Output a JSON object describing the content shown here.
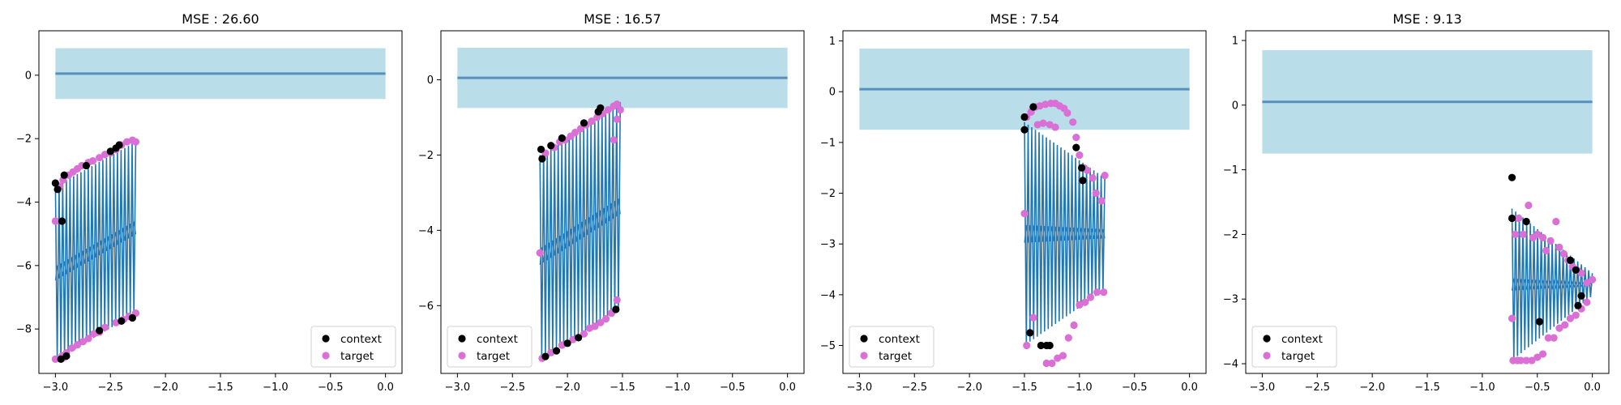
{
  "chart_data": [
    {
      "type": "line",
      "title": "MSE : 26.60",
      "xlim": [
        -3.15,
        0.15
      ],
      "ylim": [
        -9.4,
        1.4
      ],
      "xticks": [
        -3.0,
        -2.5,
        -2.0,
        -1.5,
        -1.0,
        -0.5,
        0.0
      ],
      "yticks": [
        -8,
        -6,
        -4,
        -2,
        0
      ],
      "xtick_labels": [
        "−3.0",
        "−2.5",
        "−2.0",
        "−1.5",
        "−1.0",
        "−0.5",
        "0.0"
      ],
      "ytick_labels": [
        "−8",
        "−6",
        "−4",
        "−2",
        "0"
      ],
      "grid": false,
      "legend_position": "lower right",
      "legend": [
        "context",
        "target"
      ],
      "prediction": {
        "x_range": [
          -3.0,
          0.0
        ],
        "mean": 0.05,
        "band": [
          -0.75,
          0.85
        ]
      },
      "signal": {
        "x_range": [
          -3.0,
          -2.27
        ],
        "upper_start": -3.5,
        "upper_end": -2.1,
        "lower_start": -9.0,
        "lower_end": -7.5,
        "oscillations": 22
      },
      "context_points": [
        [
          -3.0,
          -3.4
        ],
        [
          -2.98,
          -3.6
        ],
        [
          -2.92,
          -3.15
        ],
        [
          -2.72,
          -2.85
        ],
        [
          -2.5,
          -2.4
        ],
        [
          -2.45,
          -2.3
        ],
        [
          -2.42,
          -2.2
        ],
        [
          -2.4,
          -7.75
        ],
        [
          -2.3,
          -7.65
        ],
        [
          -2.6,
          -8.05
        ],
        [
          -2.9,
          -8.85
        ],
        [
          -2.95,
          -8.95
        ],
        [
          -2.94,
          -4.6
        ]
      ],
      "target_points": [
        [
          -3.0,
          -4.6
        ],
        [
          -3.0,
          -8.95
        ],
        [
          -2.96,
          -3.5
        ],
        [
          -2.93,
          -3.3
        ],
        [
          -2.88,
          -3.15
        ],
        [
          -2.84,
          -3.05
        ],
        [
          -2.8,
          -2.95
        ],
        [
          -2.76,
          -2.85
        ],
        [
          -2.7,
          -2.75
        ],
        [
          -2.66,
          -2.7
        ],
        [
          -2.6,
          -2.6
        ],
        [
          -2.55,
          -2.5
        ],
        [
          -2.5,
          -2.45
        ],
        [
          -2.45,
          -2.35
        ],
        [
          -2.4,
          -2.2
        ],
        [
          -2.35,
          -2.1
        ],
        [
          -2.3,
          -2.05
        ],
        [
          -2.27,
          -2.1
        ],
        [
          -2.27,
          -7.5
        ],
        [
          -2.33,
          -7.6
        ],
        [
          -2.38,
          -7.7
        ],
        [
          -2.45,
          -7.8
        ],
        [
          -2.55,
          -7.95
        ],
        [
          -2.6,
          -8.1
        ],
        [
          -2.65,
          -8.15
        ],
        [
          -2.7,
          -8.3
        ],
        [
          -2.75,
          -8.4
        ],
        [
          -2.8,
          -8.5
        ],
        [
          -2.85,
          -8.6
        ],
        [
          -2.9,
          -8.75
        ],
        [
          -2.94,
          -8.85
        ],
        [
          -2.92,
          -8.9
        ]
      ]
    },
    {
      "type": "line",
      "title": "MSE : 16.57",
      "xlim": [
        -3.15,
        0.15
      ],
      "ylim": [
        -7.8,
        1.3
      ],
      "xticks": [
        -3.0,
        -2.5,
        -2.0,
        -1.5,
        -1.0,
        -0.5,
        0.0
      ],
      "yticks": [
        -6,
        -4,
        -2,
        0
      ],
      "xtick_labels": [
        "−3.0",
        "−2.5",
        "−2.0",
        "−1.5",
        "−1.0",
        "−0.5",
        "0.0"
      ],
      "ytick_labels": [
        "−6",
        "−4",
        "−2",
        "0"
      ],
      "grid": false,
      "legend_position": "lower left",
      "legend": [
        "context",
        "target"
      ],
      "prediction": {
        "x_range": [
          -3.0,
          0.0
        ],
        "mean": 0.05,
        "band": [
          -0.75,
          0.85
        ]
      },
      "signal": {
        "x_range": [
          -2.25,
          -1.52
        ],
        "upper_start": -2.0,
        "upper_end": -0.6,
        "lower_start": -7.4,
        "lower_end": -6.1,
        "oscillations": 22
      },
      "context_points": [
        [
          -2.24,
          -1.85
        ],
        [
          -2.23,
          -2.1
        ],
        [
          -2.15,
          -1.75
        ],
        [
          -2.05,
          -1.55
        ],
        [
          -1.85,
          -1.15
        ],
        [
          -1.72,
          -0.85
        ],
        [
          -1.7,
          -0.75
        ],
        [
          -1.56,
          -6.1
        ],
        [
          -1.9,
          -6.85
        ],
        [
          -2.0,
          -7.0
        ],
        [
          -2.1,
          -7.2
        ],
        [
          -2.2,
          -7.35
        ]
      ],
      "target_points": [
        [
          -2.25,
          -4.6
        ],
        [
          -2.23,
          -7.4
        ],
        [
          -2.2,
          -1.95
        ],
        [
          -2.12,
          -1.8
        ],
        [
          -2.07,
          -1.65
        ],
        [
          -2.02,
          -1.6
        ],
        [
          -1.97,
          -1.5
        ],
        [
          -1.93,
          -1.4
        ],
        [
          -1.88,
          -1.3
        ],
        [
          -1.83,
          -1.2
        ],
        [
          -1.78,
          -1.1
        ],
        [
          -1.73,
          -1.0
        ],
        [
          -1.68,
          -0.9
        ],
        [
          -1.63,
          -0.8
        ],
        [
          -1.58,
          -0.7
        ],
        [
          -1.55,
          -0.65
        ],
        [
          -1.52,
          -0.8
        ],
        [
          -1.55,
          -1.05
        ],
        [
          -1.58,
          -1.6
        ],
        [
          -1.55,
          -5.85
        ],
        [
          -1.6,
          -6.2
        ],
        [
          -1.65,
          -6.35
        ],
        [
          -1.7,
          -6.45
        ],
        [
          -1.75,
          -6.55
        ],
        [
          -1.8,
          -6.6
        ],
        [
          -1.85,
          -6.75
        ],
        [
          -1.95,
          -6.9
        ],
        [
          -2.05,
          -7.05
        ],
        [
          -2.15,
          -7.25
        ]
      ]
    },
    {
      "type": "line",
      "title": "MSE : 7.54",
      "xlim": [
        -3.15,
        0.15
      ],
      "ylim": [
        -5.55,
        1.2
      ],
      "xticks": [
        -3.0,
        -2.5,
        -2.0,
        -1.5,
        -1.0,
        -0.5,
        0.0
      ],
      "yticks": [
        -5,
        -4,
        -3,
        -2,
        -1,
        0,
        1
      ],
      "xtick_labels": [
        "−3.0",
        "−2.5",
        "−2.0",
        "−1.5",
        "−1.0",
        "−0.5",
        "0.0"
      ],
      "ytick_labels": [
        "−5",
        "−4",
        "−3",
        "−2",
        "−1",
        "0",
        "1"
      ],
      "grid": false,
      "legend_position": "lower left",
      "legend": [
        "context",
        "target"
      ],
      "prediction": {
        "x_range": [
          -3.0,
          0.0
        ],
        "mean": 0.05,
        "band": [
          -0.75,
          0.85
        ]
      },
      "signal": {
        "x_range": [
          -1.5,
          -0.77
        ],
        "upper_start": -0.6,
        "upper_end": -1.7,
        "lower_start": -5.0,
        "lower_end": -3.9,
        "oscillations": 22
      },
      "context_points": [
        [
          -1.5,
          -0.5
        ],
        [
          -1.5,
          -0.75
        ],
        [
          -1.42,
          -0.3
        ],
        [
          -1.35,
          -5.0
        ],
        [
          -1.3,
          -5.0
        ],
        [
          -1.27,
          -5.0
        ],
        [
          -1.03,
          -1.1
        ],
        [
          -0.98,
          -1.5
        ],
        [
          -0.97,
          -1.75
        ],
        [
          -1.45,
          -4.75
        ]
      ],
      "target_points": [
        [
          -1.5,
          -2.4
        ],
        [
          -1.48,
          -5.0
        ],
        [
          -1.48,
          -0.5
        ],
        [
          -1.44,
          -0.4
        ],
        [
          -1.4,
          -0.3
        ],
        [
          -1.36,
          -0.28
        ],
        [
          -1.31,
          -0.25
        ],
        [
          -1.26,
          -0.23
        ],
        [
          -1.22,
          -0.23
        ],
        [
          -1.18,
          -0.28
        ],
        [
          -1.14,
          -0.33
        ],
        [
          -1.11,
          -0.42
        ],
        [
          -1.06,
          -0.6
        ],
        [
          -1.03,
          -0.9
        ],
        [
          -1.0,
          -1.25
        ],
        [
          -0.96,
          -1.5
        ],
        [
          -0.93,
          -1.55
        ],
        [
          -0.88,
          -1.7
        ],
        [
          -0.85,
          -2.0
        ],
        [
          -0.8,
          -2.15
        ],
        [
          -0.77,
          -1.65
        ],
        [
          -1.3,
          -5.35
        ],
        [
          -1.25,
          -5.35
        ],
        [
          -1.2,
          -5.25
        ],
        [
          -1.15,
          -5.2
        ],
        [
          -1.1,
          -4.85
        ],
        [
          -1.05,
          -4.6
        ],
        [
          -1.0,
          -4.2
        ],
        [
          -0.95,
          -4.15
        ],
        [
          -0.9,
          -4.05
        ],
        [
          -0.84,
          -3.95
        ],
        [
          -0.78,
          -3.95
        ],
        [
          -1.42,
          -4.45
        ],
        [
          -1.38,
          -0.65
        ],
        [
          -1.33,
          -0.62
        ],
        [
          -1.27,
          -0.65
        ],
        [
          -1.22,
          -0.7
        ]
      ]
    },
    {
      "type": "line",
      "title": "MSE : 9.13",
      "xlim": [
        -3.15,
        0.15
      ],
      "ylim": [
        -4.15,
        1.15
      ],
      "xticks": [
        -3.0,
        -2.5,
        -2.0,
        -1.5,
        -1.0,
        -0.5,
        0.0
      ],
      "yticks": [
        -4,
        -3,
        -2,
        -1,
        0,
        1
      ],
      "xtick_labels": [
        "−3.0",
        "−2.5",
        "−2.0",
        "−1.5",
        "−1.0",
        "−0.5",
        "0.0"
      ],
      "ytick_labels": [
        "−4",
        "−3",
        "−2",
        "−1",
        "0",
        "1"
      ],
      "grid": false,
      "legend_position": "lower left",
      "legend": [
        "context",
        "target"
      ],
      "prediction": {
        "x_range": [
          -3.0,
          0.0
        ],
        "mean": 0.05,
        "band": [
          -0.75,
          0.85
        ]
      },
      "signal": {
        "x_range": [
          -0.73,
          0.0
        ],
        "upper_start": -1.6,
        "upper_end": -2.6,
        "lower_start": -3.95,
        "lower_end": -2.95,
        "oscillations": 22
      },
      "context_points": [
        [
          -0.73,
          -1.12
        ],
        [
          -0.73,
          -1.75
        ],
        [
          -0.6,
          -1.8
        ],
        [
          -0.48,
          -3.35
        ],
        [
          -0.2,
          -2.4
        ],
        [
          -0.15,
          -2.55
        ],
        [
          -0.1,
          -2.95
        ],
        [
          -0.13,
          -3.1
        ]
      ],
      "target_points": [
        [
          -0.73,
          -3.3
        ],
        [
          -0.72,
          -3.95
        ],
        [
          -0.7,
          -2.0
        ],
        [
          -0.67,
          -1.75
        ],
        [
          -0.63,
          -2.0
        ],
        [
          -0.58,
          -1.55
        ],
        [
          -0.54,
          -2.05
        ],
        [
          -0.5,
          -2.0
        ],
        [
          -0.45,
          -2.05
        ],
        [
          -0.42,
          -2.25
        ],
        [
          -0.38,
          -2.1
        ],
        [
          -0.33,
          -1.8
        ],
        [
          -0.3,
          -2.2
        ],
        [
          -0.26,
          -2.3
        ],
        [
          -0.22,
          -2.4
        ],
        [
          -0.18,
          -2.5
        ],
        [
          -0.14,
          -2.55
        ],
        [
          -0.1,
          -2.6
        ],
        [
          -0.05,
          -2.75
        ],
        [
          0.0,
          -2.7
        ],
        [
          -0.6,
          -3.95
        ],
        [
          -0.55,
          -3.95
        ],
        [
          -0.5,
          -3.9
        ],
        [
          -0.45,
          -3.85
        ],
        [
          -0.4,
          -3.6
        ],
        [
          -0.35,
          -3.6
        ],
        [
          -0.3,
          -3.45
        ],
        [
          -0.25,
          -3.4
        ],
        [
          -0.2,
          -3.3
        ],
        [
          -0.15,
          -3.25
        ],
        [
          -0.1,
          -3.15
        ],
        [
          -0.05,
          -3.05
        ],
        [
          -0.68,
          -3.95
        ],
        [
          -0.65,
          -3.95
        ]
      ]
    }
  ],
  "colors": {
    "band": "#add8e6",
    "mean": "#4682b4",
    "signal": "#1f77b4",
    "context": "#000000",
    "target": "#da70d6"
  }
}
